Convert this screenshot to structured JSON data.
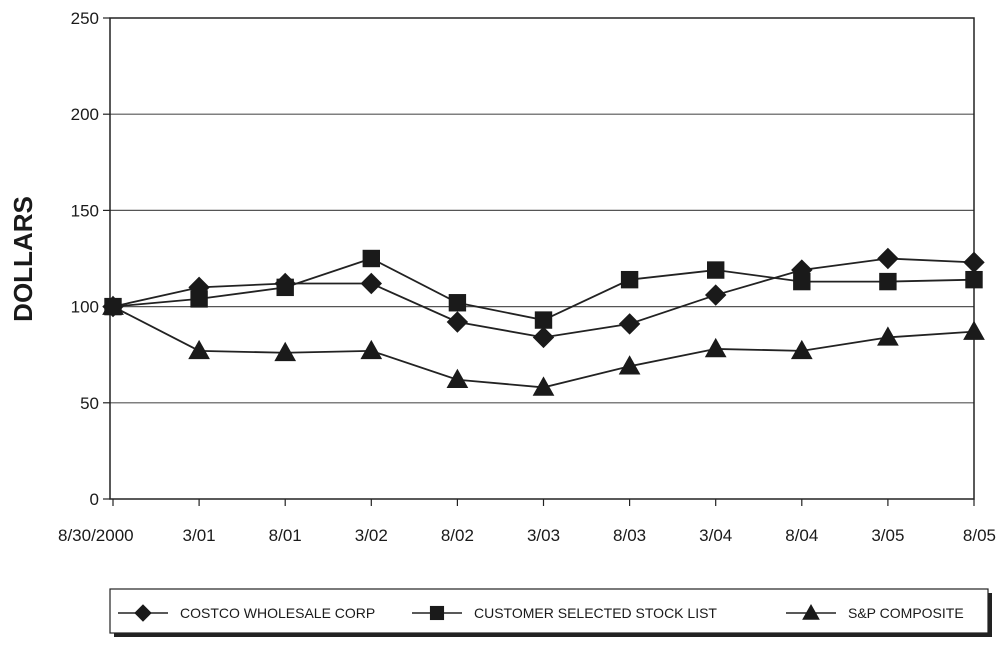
{
  "chart_data": {
    "type": "line",
    "ylabel": "DOLLARS",
    "xlabel": "",
    "title": "",
    "ylim": [
      0,
      250
    ],
    "yticks": [
      0,
      50,
      100,
      150,
      200,
      250
    ],
    "grid": "horizontal",
    "legend_position": "bottom",
    "categories": [
      "8/30/2000",
      "3/01",
      "8/01",
      "3/02",
      "8/02",
      "3/03",
      "8/03",
      "3/04",
      "8/04",
      "3/05",
      "8/05"
    ],
    "series": [
      {
        "name": "COSTCO WHOLESALE CORP",
        "marker": "diamond",
        "values": [
          100,
          110,
          112,
          112,
          92,
          84,
          91,
          106,
          119,
          125,
          123
        ]
      },
      {
        "name": "CUSTOMER SELECTED STOCK LIST",
        "marker": "square",
        "values": [
          100,
          104,
          110,
          125,
          102,
          93,
          114,
          119,
          113,
          113,
          114
        ]
      },
      {
        "name": "S&P COMPOSITE",
        "marker": "triangle",
        "values": [
          100,
          77,
          76,
          77,
          62,
          58,
          69,
          78,
          77,
          84,
          87
        ]
      }
    ]
  }
}
